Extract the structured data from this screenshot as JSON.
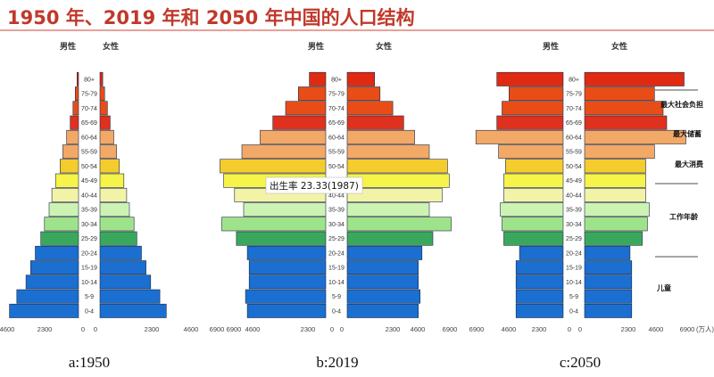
{
  "title": "1950 年、2019 年和 2050 年中国的人口结构",
  "colors": {
    "title": "#c0392b",
    "bands": [
      "#1a6fd0",
      "#1a6fd0",
      "#1a6fd0",
      "#1a6fd0",
      "#1a6fd0",
      "#3aa85c",
      "#9ee38a",
      "#cdf3b3",
      "#f3f3a8",
      "#f6f34a",
      "#f4cc2e",
      "#f2a866",
      "#f2a866",
      "#e0301e",
      "#e84d18",
      "#e84d18",
      "#e02a12"
    ]
  },
  "chart_data": [
    {
      "type": "bar",
      "caption": "a:1950",
      "labels": {
        "male": "男性",
        "female": "女性"
      },
      "categories": [
        "0-4",
        "5-9",
        "10-14",
        "15-19",
        "20-24",
        "25-29",
        "30-34",
        "35-39",
        "40-44",
        "45-49",
        "50-54",
        "55-59",
        "60-64",
        "65-69",
        "70-74",
        "75-79",
        "80+"
      ],
      "male": [
        3750,
        3350,
        2850,
        2600,
        2350,
        2050,
        1850,
        1600,
        1450,
        1250,
        1000,
        850,
        650,
        450,
        300,
        180,
        80
      ],
      "female": [
        3600,
        3250,
        2750,
        2500,
        2250,
        2000,
        1850,
        1600,
        1450,
        1300,
        1050,
        900,
        750,
        550,
        400,
        250,
        150
      ],
      "male_ticks": [
        "4600",
        "2300",
        "0"
      ],
      "female_ticks": [
        "0",
        "2300",
        "4600"
      ],
      "annotations": []
    },
    {
      "type": "bar",
      "caption": "b:2019",
      "labels": {
        "male": "男性",
        "female": "女性"
      },
      "categories": [
        "0-4",
        "5-9",
        "10-14",
        "15-19",
        "20-24",
        "25-29",
        "30-34",
        "35-39",
        "40-44",
        "45-49",
        "50-54",
        "55-59",
        "60-64",
        "65-69",
        "70-74",
        "75-79",
        "80+"
      ],
      "male": [
        4300,
        4400,
        4200,
        4200,
        4300,
        4900,
        5700,
        4500,
        5000,
        5600,
        5800,
        4600,
        3600,
        2900,
        2200,
        1500,
        900
      ],
      "female": [
        3900,
        4000,
        3900,
        3900,
        4100,
        4700,
        5700,
        4500,
        5200,
        5600,
        5500,
        4500,
        3700,
        3100,
        2500,
        1800,
        1500
      ],
      "male_ticks": [
        "6900",
        "6900",
        "4600",
        "2300",
        "0"
      ],
      "female_ticks": [
        "0",
        "2300",
        "4600",
        "6900"
      ],
      "annotations": [
        {
          "text": "出生率 23.33(1987)"
        }
      ]
    },
    {
      "type": "bar",
      "caption": "c:2050",
      "labels": {
        "male": "男性",
        "female": "女性"
      },
      "categories": [
        "0-4",
        "5-9",
        "10-14",
        "15-19",
        "20-24",
        "25-29",
        "30-34",
        "35-39",
        "40-44",
        "45-49",
        "50-54",
        "55-59",
        "60-64",
        "65-69",
        "70-74",
        "75-79",
        "80+"
      ],
      "male": [
        2700,
        2700,
        2700,
        2700,
        2500,
        3400,
        3500,
        3600,
        3400,
        3400,
        3300,
        3700,
        5000,
        3800,
        3500,
        3100,
        3800
      ],
      "female": [
        2700,
        2700,
        2700,
        2700,
        2600,
        3300,
        3600,
        3700,
        3500,
        3500,
        3500,
        4000,
        5800,
        4700,
        4500,
        4000,
        5700
      ],
      "male_ticks": [
        "6900",
        "4600",
        "2300",
        "0"
      ],
      "female_ticks": [
        "0",
        "2300",
        "4600",
        "6900",
        "(万人)"
      ],
      "annotations": [
        {
          "text": "最大社会负担"
        },
        {
          "text": "最大储蓄"
        },
        {
          "text": "最大消费"
        },
        {
          "text": "工作年龄"
        },
        {
          "text": "儿童"
        }
      ]
    }
  ]
}
